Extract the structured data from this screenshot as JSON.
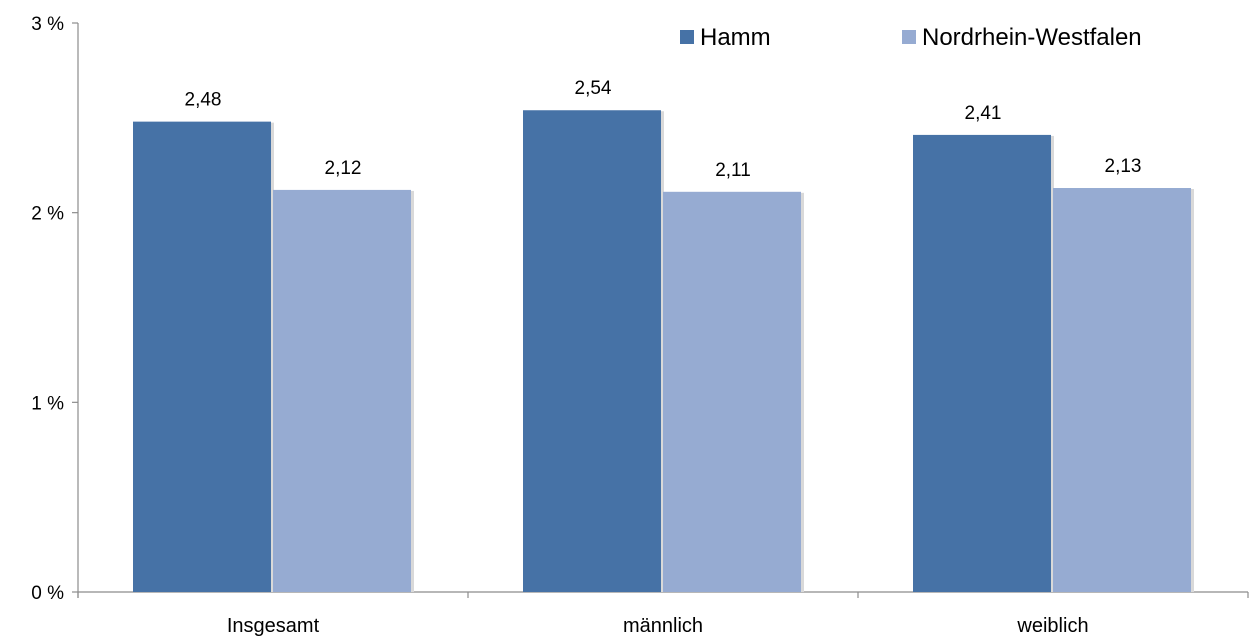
{
  "chart_data": {
    "type": "bar",
    "categories": [
      "Insgesamt",
      "männlich",
      "weiblich"
    ],
    "series": [
      {
        "name": "Hamm",
        "values": [
          2.48,
          2.54,
          2.41
        ],
        "labels": [
          "2,48",
          "2,54",
          "2,41"
        ]
      },
      {
        "name": "Nordrhein-Westfalen",
        "values": [
          2.12,
          2.11,
          2.13
        ],
        "labels": [
          "2,12",
          "2,11",
          "2,13"
        ]
      }
    ],
    "ylim": [
      0,
      3
    ],
    "yticks": [
      0,
      1,
      2,
      3
    ],
    "ytick_labels": [
      "0 %",
      "1 %",
      "2 %",
      "3 %"
    ],
    "xlabel": "",
    "ylabel": "",
    "title": "",
    "grid": false,
    "legend_position": "top-right"
  },
  "colors": {
    "series": [
      "#4672a6",
      "#96abd2"
    ],
    "axis": "#8c8c8c"
  }
}
